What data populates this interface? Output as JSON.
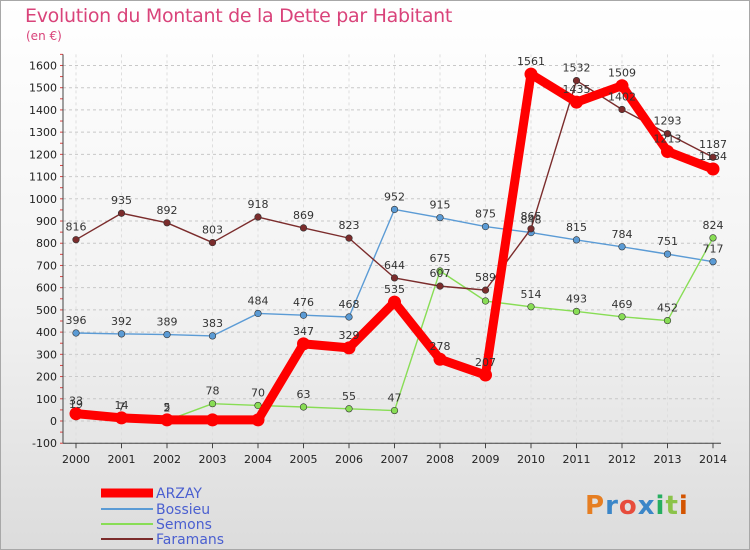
{
  "title": "Evolution du Montant de la Dette par Habitant",
  "subtitle": "(en €)",
  "logo_text": "Proxiti",
  "chart_data": {
    "type": "line",
    "title": "Evolution du Montant de la Dette par Habitant",
    "subtitle": "(en €)",
    "x": [
      "2000",
      "2001",
      "2002",
      "2003",
      "2004",
      "2005",
      "2006",
      "2007",
      "2008",
      "2009",
      "2010",
      "2011",
      "2012",
      "2013",
      "2014"
    ],
    "yticks": [
      -100,
      0,
      100,
      200,
      300,
      400,
      500,
      600,
      700,
      800,
      900,
      1000,
      1100,
      1200,
      1300,
      1400,
      1500,
      1600
    ],
    "ylim": [
      -100,
      1650
    ],
    "grid": "horizontal dashed",
    "legend_position": "bottom-left",
    "series": [
      {
        "name": "ARZAY",
        "color": "#ff0000",
        "values": [
          33,
          14,
          5,
          5,
          5,
          347,
          329,
          535,
          278,
          207,
          1561,
          1435,
          1509,
          1213,
          1134
        ],
        "labels": [
          "33",
          "14",
          "5",
          "",
          "",
          "347",
          "329",
          "535",
          "278",
          "207",
          "1561",
          "1435",
          "1509",
          "1213",
          "1134"
        ]
      },
      {
        "name": "Bossieu",
        "color": "#5b9bd5",
        "values": [
          396,
          392,
          389,
          383,
          484,
          476,
          468,
          952,
          915,
          875,
          848,
          815,
          784,
          751,
          717
        ],
        "labels": [
          "396",
          "392",
          "389",
          "383",
          "484",
          "476",
          "468",
          "952",
          "915",
          "875",
          "848",
          "815",
          "784",
          "751",
          "717"
        ]
      },
      {
        "name": "Semons",
        "color": "#88dd55",
        "values": [
          19,
          7,
          2,
          78,
          70,
          63,
          55,
          47,
          675,
          540,
          514,
          493,
          469,
          452,
          824
        ],
        "labels": [
          "19",
          "7",
          "2",
          "78",
          "70",
          "63",
          "55",
          "47",
          "675",
          "",
          "514",
          "493",
          "469",
          "452",
          "824"
        ]
      },
      {
        "name": "Faramans",
        "color": "#7b2c2c",
        "values": [
          816,
          935,
          892,
          803,
          918,
          869,
          823,
          644,
          607,
          589,
          865,
          1532,
          1402,
          1293,
          1187
        ],
        "labels": [
          "816",
          "935",
          "892",
          "803",
          "918",
          "869",
          "823",
          "644",
          "607",
          "589",
          "865",
          "1532",
          "1402",
          "1293",
          "1187"
        ]
      }
    ]
  }
}
